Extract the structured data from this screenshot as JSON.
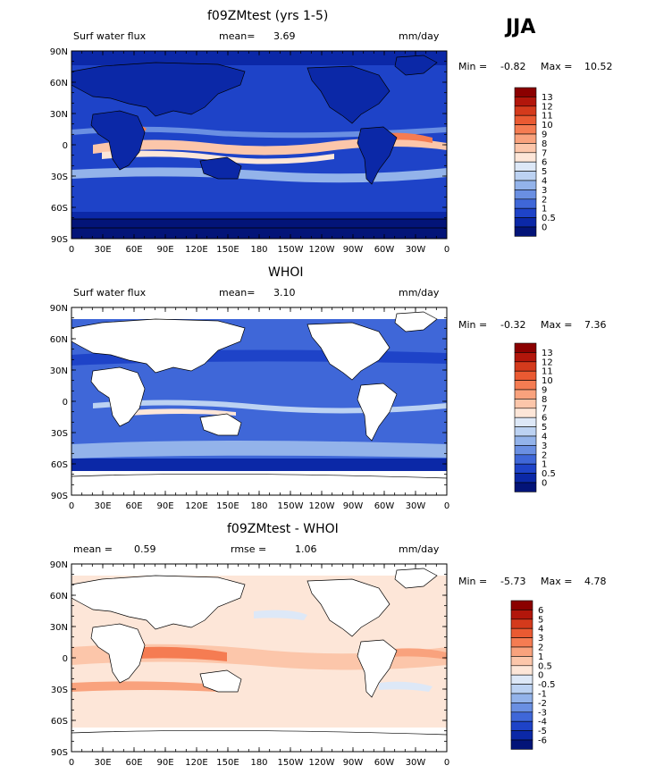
{
  "season": "JJA",
  "panels": [
    {
      "title": "f09ZMtest (yrs 1-5)",
      "left_label": "Surf water flux",
      "mean_label": "mean=",
      "mean_value": "3.69",
      "units": "mm/day",
      "min_label": "Min =",
      "min_value": "-0.82",
      "max_label": "Max =",
      "max_value": "10.52",
      "colorbar_labels": [
        "13",
        "12",
        "11",
        "10",
        "9",
        "8",
        "7",
        "6",
        "5",
        "4",
        "3",
        "2",
        "1",
        "0.5",
        "0"
      ],
      "colors": [
        "#8b0000",
        "#b2160b",
        "#d43a1c",
        "#ea5a32",
        "#f57c52",
        "#f9a27d",
        "#fcc6aa",
        "#fde6d8",
        "#dde8f7",
        "#bcd2f2",
        "#93b3ea",
        "#6a8fe2",
        "#3f67d8",
        "#1e43c8",
        "#0b28a7",
        "#031478"
      ]
    },
    {
      "title": "WHOI",
      "left_label": "Surf water flux",
      "mean_label": "mean=",
      "mean_value": "3.10",
      "units": "mm/day",
      "min_label": "Min =",
      "min_value": "-0.32",
      "max_label": "Max =",
      "max_value": "7.36",
      "colorbar_labels": [
        "13",
        "12",
        "11",
        "10",
        "9",
        "8",
        "7",
        "6",
        "5",
        "4",
        "3",
        "2",
        "1",
        "0.5",
        "0"
      ],
      "colors": [
        "#8b0000",
        "#b2160b",
        "#d43a1c",
        "#ea5a32",
        "#f57c52",
        "#f9a27d",
        "#fcc6aa",
        "#fde6d8",
        "#dde8f7",
        "#bcd2f2",
        "#93b3ea",
        "#6a8fe2",
        "#3f67d8",
        "#1e43c8",
        "#0b28a7",
        "#031478"
      ]
    },
    {
      "title": "f09ZMtest - WHOI",
      "left_label": "mean =",
      "mean_label": "",
      "mean_value": "0.59",
      "rmse_label": "rmse =",
      "rmse_value": "1.06",
      "units": "mm/day",
      "min_label": "Min =",
      "min_value": "-5.73",
      "max_label": "Max =",
      "max_value": "4.78",
      "colorbar_labels": [
        "6",
        "5",
        "4",
        "3",
        "2",
        "1",
        "0.5",
        "0",
        "-0.5",
        "-1",
        "-2",
        "-3",
        "-4",
        "-5",
        "-6"
      ],
      "colors": [
        "#8b0000",
        "#b2160b",
        "#d43a1c",
        "#ea5a32",
        "#f57c52",
        "#f9a27d",
        "#fcc6aa",
        "#fde6d8",
        "#dde8f7",
        "#bcd2f2",
        "#93b3ea",
        "#6a8fe2",
        "#3f67d8",
        "#1e43c8",
        "#0b28a7",
        "#031478"
      ]
    }
  ],
  "lat_labels": [
    "90N",
    "60N",
    "30N",
    "0",
    "30S",
    "60S",
    "90S"
  ],
  "lon_labels": [
    "0",
    "30E",
    "60E",
    "90E",
    "120E",
    "150E",
    "180",
    "150W",
    "120W",
    "90W",
    "60W",
    "30W",
    "0"
  ]
}
